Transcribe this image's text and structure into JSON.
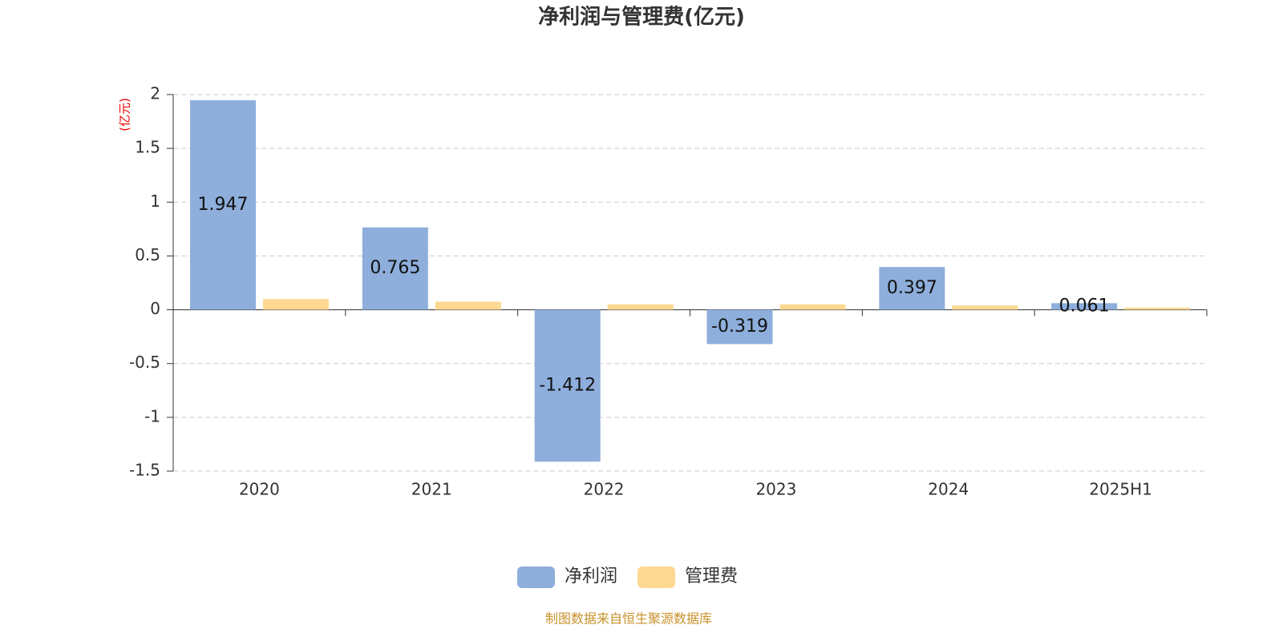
{
  "chart_data": {
    "type": "bar",
    "title": "净利润与管理费(亿元)",
    "y_axis_label": "(亿元)",
    "categories": [
      "2020",
      "2021",
      "2022",
      "2023",
      "2024",
      "2025H1"
    ],
    "series": [
      {
        "name": "净利润",
        "color": "#8eaedb",
        "values": [
          1.947,
          0.765,
          -1.412,
          -0.319,
          0.397,
          0.061
        ],
        "show_labels": true
      },
      {
        "name": "管理费",
        "color": "#fdd893",
        "values": [
          0.1,
          0.075,
          0.05,
          0.05,
          0.04,
          0.02
        ],
        "show_labels": false
      }
    ],
    "ylim": [
      -1.5,
      2
    ],
    "yticks": [
      -1.5,
      -1,
      -0.5,
      0,
      0.5,
      1,
      1.5,
      2
    ],
    "grid": true,
    "legend": "bottom",
    "source": "制图数据来自恒生聚源数据库"
  }
}
